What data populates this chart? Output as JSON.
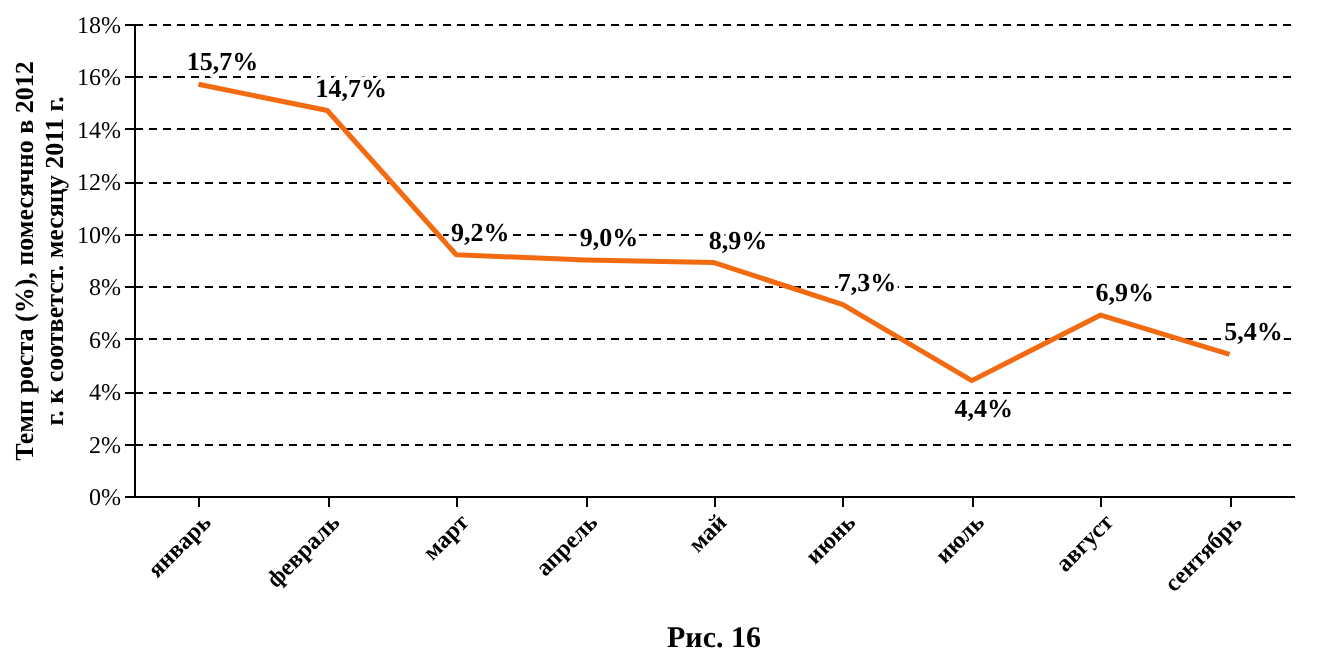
{
  "chart_data": {
    "type": "line",
    "ylabel": "Темп роста (%), помесячно в 2012 г. к соответст. месяцу 2011 г.",
    "categories": [
      "январь",
      "февраль",
      "март",
      "апрель",
      "май",
      "июнь",
      "июль",
      "август",
      "сентябрь"
    ],
    "series": [
      {
        "color": "#f26b10",
        "values": [
          15.7,
          14.7,
          9.2,
          9.0,
          8.9,
          7.3,
          4.4,
          6.9,
          5.4
        ],
        "value_labels": [
          "15,7%",
          "14,7%",
          "9,2%",
          "9,0%",
          "8,9%",
          "7,3%",
          "4,4%",
          "6,9%",
          "5,4%"
        ]
      }
    ],
    "ylim": [
      0,
      18
    ],
    "yticks": [
      {
        "value": 0,
        "label": "0%"
      },
      {
        "value": 2,
        "label": "2%"
      },
      {
        "value": 4,
        "label": "4%"
      },
      {
        "value": 6,
        "label": "6%"
      },
      {
        "value": 8,
        "label": "8%"
      },
      {
        "value": 10,
        "label": "10%"
      },
      {
        "value": 12,
        "label": "12%"
      },
      {
        "value": 14,
        "label": "14%"
      },
      {
        "value": 16,
        "label": "16%"
      },
      {
        "value": 18,
        "label": "18%"
      }
    ],
    "grid": "y",
    "line_style": "solid",
    "marker": "none",
    "legend": false,
    "annotations": [
      "Рис. 16"
    ]
  }
}
